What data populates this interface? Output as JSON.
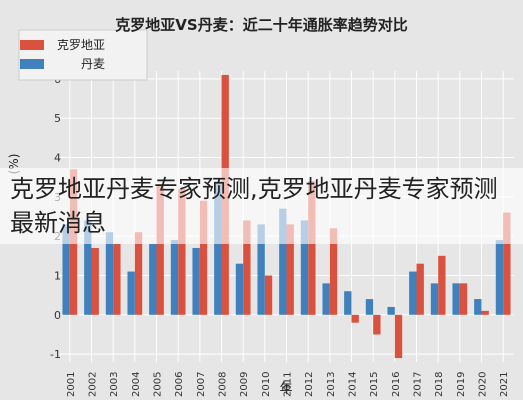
{
  "overlay": {
    "caption": "克罗地亚丹麦专家预测,克罗地亚丹麦专家预测最新消息"
  },
  "colors": {
    "croatia": "#d9523f",
    "denmark": "#3f80bd",
    "background": "#e6e6e6",
    "grid": "#ffffff"
  },
  "chart_data": {
    "type": "bar",
    "orientation": "mirrored (rotated 180°)",
    "title": "克罗地亚VS丹麦：近二十年通胀率趋势对比",
    "xlabel": "年",
    "ylabel": "(%)",
    "ylim": [
      -1.2,
      6.2
    ],
    "yticks": [
      "-1",
      "0",
      "1",
      "2",
      "3",
      "4",
      "5",
      "6"
    ],
    "categories": [
      "2021",
      "2020",
      "2019",
      "2018",
      "2017",
      "2016",
      "2015",
      "2014",
      "2013",
      "2012",
      "2011",
      "2010",
      "2009",
      "2008",
      "2007",
      "2006",
      "2005",
      "2004",
      "2003",
      "2002",
      "2001"
    ],
    "series": [
      {
        "name": "克罗地亚",
        "color": "#d9523f",
        "values": [
          2.6,
          0.1,
          0.8,
          1.5,
          1.3,
          -1.1,
          -0.5,
          -0.2,
          2.2,
          3.4,
          2.3,
          1.0,
          2.4,
          6.1,
          2.9,
          3.2,
          3.3,
          2.1,
          1.8,
          1.7,
          3.7
        ]
      },
      {
        "name": "丹麦",
        "color": "#3f80bd",
        "values": [
          1.9,
          0.4,
          0.8,
          0.8,
          1.1,
          0.2,
          0.4,
          0.6,
          0.8,
          2.4,
          2.7,
          2.3,
          1.3,
          3.4,
          1.7,
          1.9,
          1.8,
          1.1,
          2.1,
          2.4,
          2.3
        ]
      }
    ],
    "legend": "top-left",
    "grid": true
  }
}
